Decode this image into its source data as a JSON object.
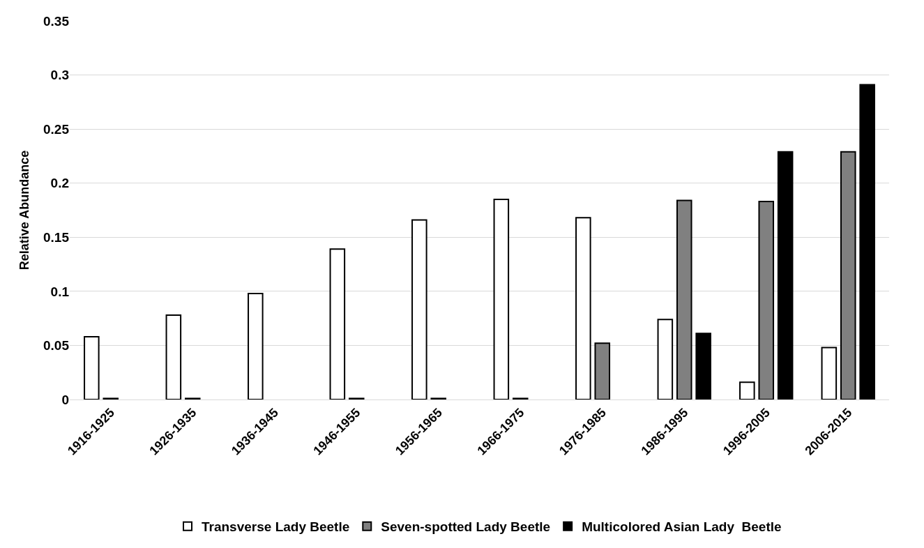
{
  "chart_data": {
    "type": "bar",
    "ylabel": "Relative Abundance",
    "categories": [
      "1916-1925",
      "1926-1935",
      "1936-1945",
      "1946-1955",
      "1956-1965",
      "1966-1975",
      "1976-1985",
      "1986-1995",
      "1996-2005",
      "2006-2015"
    ],
    "series": [
      {
        "name": "Transverse Lady Beetle",
        "color": "#ffffff",
        "values": [
          0.058,
          0.078,
          0.098,
          0.139,
          0.166,
          0.185,
          0.168,
          0.074,
          0.016,
          0.048
        ]
      },
      {
        "name": "Seven-spotted Lady Beetle",
        "color": "#808080",
        "values": [
          0.001,
          0.001,
          null,
          0.001,
          0.001,
          0.001,
          0.052,
          0.184,
          0.183,
          0.229
        ]
      },
      {
        "name": "Multicolored Asian Lady  Beetle",
        "color": "#000000",
        "values": [
          null,
          null,
          null,
          null,
          null,
          null,
          null,
          0.061,
          0.229,
          0.291
        ]
      }
    ],
    "ylim": [
      0,
      0.35
    ],
    "yticks": [
      0,
      0.05,
      0.1,
      0.15,
      0.2,
      0.25,
      0.3,
      0.35
    ],
    "grid": "y",
    "legend": "bottom"
  }
}
